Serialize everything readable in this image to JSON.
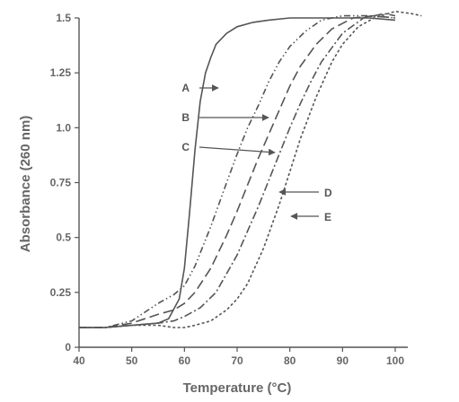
{
  "chart_data": {
    "type": "line",
    "title": "",
    "xlabel": "Temperature (°C)",
    "ylabel": "Absorbance (260 nm)",
    "xlim": [
      40,
      100
    ],
    "ylim": [
      0,
      1.5
    ],
    "x_ticks": [
      40,
      50,
      60,
      70,
      80,
      90,
      100
    ],
    "x_tick_labels": [
      "40",
      "50",
      "60",
      "70",
      "80",
      "90",
      "100"
    ],
    "y_ticks": [
      0,
      0.25,
      0.5,
      0.75,
      1.0,
      1.25,
      1.5
    ],
    "y_tick_labels": [
      "0",
      "0.25",
      "0.5",
      "0.75",
      "1.0",
      "1.25",
      "1.5"
    ],
    "grid": false,
    "series": [
      {
        "name": "A",
        "style": "solid",
        "x": [
          40,
          45,
          50,
          55,
          57,
          59,
          60,
          61,
          62,
          63,
          64,
          65,
          66,
          68,
          70,
          73,
          76,
          80,
          85,
          90,
          95,
          100
        ],
        "y": [
          0.09,
          0.09,
          0.1,
          0.11,
          0.13,
          0.22,
          0.36,
          0.62,
          0.9,
          1.12,
          1.25,
          1.32,
          1.38,
          1.43,
          1.46,
          1.48,
          1.49,
          1.5,
          1.5,
          1.5,
          1.5,
          1.49
        ]
      },
      {
        "name": "B",
        "style": "dash-dot-dot",
        "x": [
          40,
          45,
          50,
          55,
          58,
          60,
          62,
          65,
          68,
          70,
          72,
          74,
          76,
          78,
          80,
          83,
          86,
          90,
          95,
          100
        ],
        "y": [
          0.09,
          0.09,
          0.12,
          0.2,
          0.24,
          0.28,
          0.37,
          0.55,
          0.75,
          0.88,
          1.0,
          1.1,
          1.21,
          1.3,
          1.37,
          1.44,
          1.49,
          1.51,
          1.51,
          1.5
        ]
      },
      {
        "name": "C",
        "style": "long-dash",
        "x": [
          40,
          45,
          50,
          55,
          58,
          60,
          62,
          65,
          68,
          70,
          72,
          74,
          76,
          78,
          80,
          82,
          85,
          88,
          92,
          96,
          100
        ],
        "y": [
          0.09,
          0.09,
          0.11,
          0.15,
          0.17,
          0.2,
          0.25,
          0.36,
          0.51,
          0.62,
          0.74,
          0.86,
          0.97,
          1.08,
          1.19,
          1.28,
          1.38,
          1.45,
          1.5,
          1.51,
          1.5
        ]
      },
      {
        "name": "D",
        "style": "dash-dot",
        "x": [
          40,
          45,
          50,
          55,
          58,
          60,
          63,
          66,
          70,
          72,
          74,
          76,
          78,
          80,
          82,
          84,
          86,
          90,
          94,
          98,
          100
        ],
        "y": [
          0.09,
          0.09,
          0.1,
          0.11,
          0.12,
          0.14,
          0.18,
          0.25,
          0.42,
          0.53,
          0.64,
          0.76,
          0.88,
          1.0,
          1.11,
          1.21,
          1.3,
          1.43,
          1.5,
          1.52,
          1.51
        ]
      },
      {
        "name": "E",
        "style": "short-dash",
        "x": [
          40,
          45,
          50,
          55,
          58,
          60,
          62,
          65,
          68,
          70,
          72,
          75,
          78,
          80,
          82,
          85,
          88,
          90,
          93,
          96,
          100,
          103,
          105
        ],
        "y": [
          0.09,
          0.09,
          0.1,
          0.1,
          0.09,
          0.09,
          0.1,
          0.12,
          0.17,
          0.22,
          0.29,
          0.45,
          0.65,
          0.8,
          0.95,
          1.14,
          1.3,
          1.38,
          1.46,
          1.5,
          1.53,
          1.52,
          1.51
        ]
      }
    ],
    "annotations": [
      {
        "label": "A",
        "series": "A"
      },
      {
        "label": "B",
        "series": "B"
      },
      {
        "label": "C",
        "series": "C"
      },
      {
        "label": "D",
        "series": "D"
      },
      {
        "label": "E",
        "series": "E"
      }
    ]
  }
}
